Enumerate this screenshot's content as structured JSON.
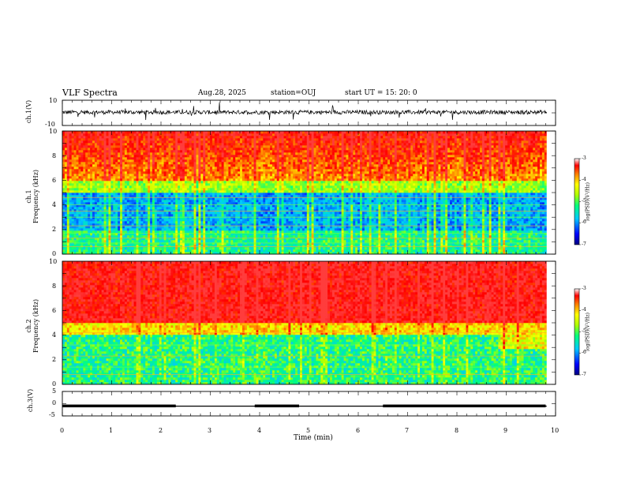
{
  "header": {
    "title": "VLF Spectra",
    "date": "Aug.28, 2025",
    "station": "station=OUJ",
    "start": "start  UT  =   15: 20: 0"
  },
  "chart_data": {
    "type": "heatmap",
    "xlabel": "Time  (min)",
    "x_range": [
      0,
      10
    ],
    "x_ticks": [
      "0",
      "1",
      "2",
      "3",
      "4",
      "5",
      "6",
      "7",
      "8",
      "9",
      "10"
    ],
    "panels": [
      {
        "name": "ch1-waveform",
        "type": "line",
        "ylabel": "ch.1(V)",
        "ylim": [
          -10,
          10
        ],
        "y_ticks": [
          "10",
          "-10"
        ]
      },
      {
        "name": "ch1-spectrogram",
        "type": "heatmap",
        "ylabel": "ch.1\nFrequency  (kHz)",
        "ylabel_line1": "ch.1",
        "ylabel_line2": "Frequency  (kHz)",
        "ylim": [
          0,
          10
        ],
        "y_ticks": [
          "0",
          "2",
          "4",
          "6",
          "8",
          "10"
        ],
        "colorbar": {
          "label": "log(PSD)(V²/Hz)",
          "range": [
            -7,
            -3
          ],
          "ticks": [
            "-3",
            "-4",
            "-5",
            "-6",
            "-7"
          ]
        }
      },
      {
        "name": "ch2-spectrogram",
        "type": "heatmap",
        "ylabel_line1": "ch.2",
        "ylabel_line2": "Frequency  (kHz)",
        "ylim": [
          0,
          10
        ],
        "y_ticks": [
          "0",
          "2",
          "4",
          "6",
          "8",
          "10"
        ],
        "colorbar": {
          "label": "log(PSD)(V²/Hz)",
          "range": [
            -7,
            -3
          ],
          "ticks": [
            "-3",
            "-4",
            "-5",
            "-6",
            "-7"
          ]
        }
      },
      {
        "name": "ch3-waveform",
        "type": "line",
        "ylabel": "ch.3(V)",
        "ylim": [
          -5,
          5
        ],
        "y_ticks": [
          "5",
          "0",
          "-5"
        ],
        "level_v": -1.0,
        "thick_segments_min": [
          [
            0,
            2.3
          ],
          [
            3.9,
            4.8
          ],
          [
            6.5,
            9.8
          ]
        ],
        "end_min": 9.82
      }
    ],
    "spectral_features": {
      "data_end_min": 9.82,
      "ch1_quiet_band_khz": [
        2.0,
        5.0
      ],
      "ch1_strong_band_khz": [
        6.0,
        10.0
      ],
      "ch1_line_frequencies_khz": [
        0.6,
        0.9,
        1.3,
        1.7,
        2.3,
        3.0,
        3.5,
        4.0,
        4.6
      ],
      "ch2_strong_band_khz": [
        5.0,
        10.0
      ],
      "ch2_line_frequencies_khz": [
        0.8,
        1.4,
        2.3,
        3.2,
        4.2
      ],
      "ch2_enhanced_segment": {
        "t_min": [
          8.8,
          9.82
        ],
        "f_khz": [
          2.8,
          4.0
        ]
      }
    }
  }
}
